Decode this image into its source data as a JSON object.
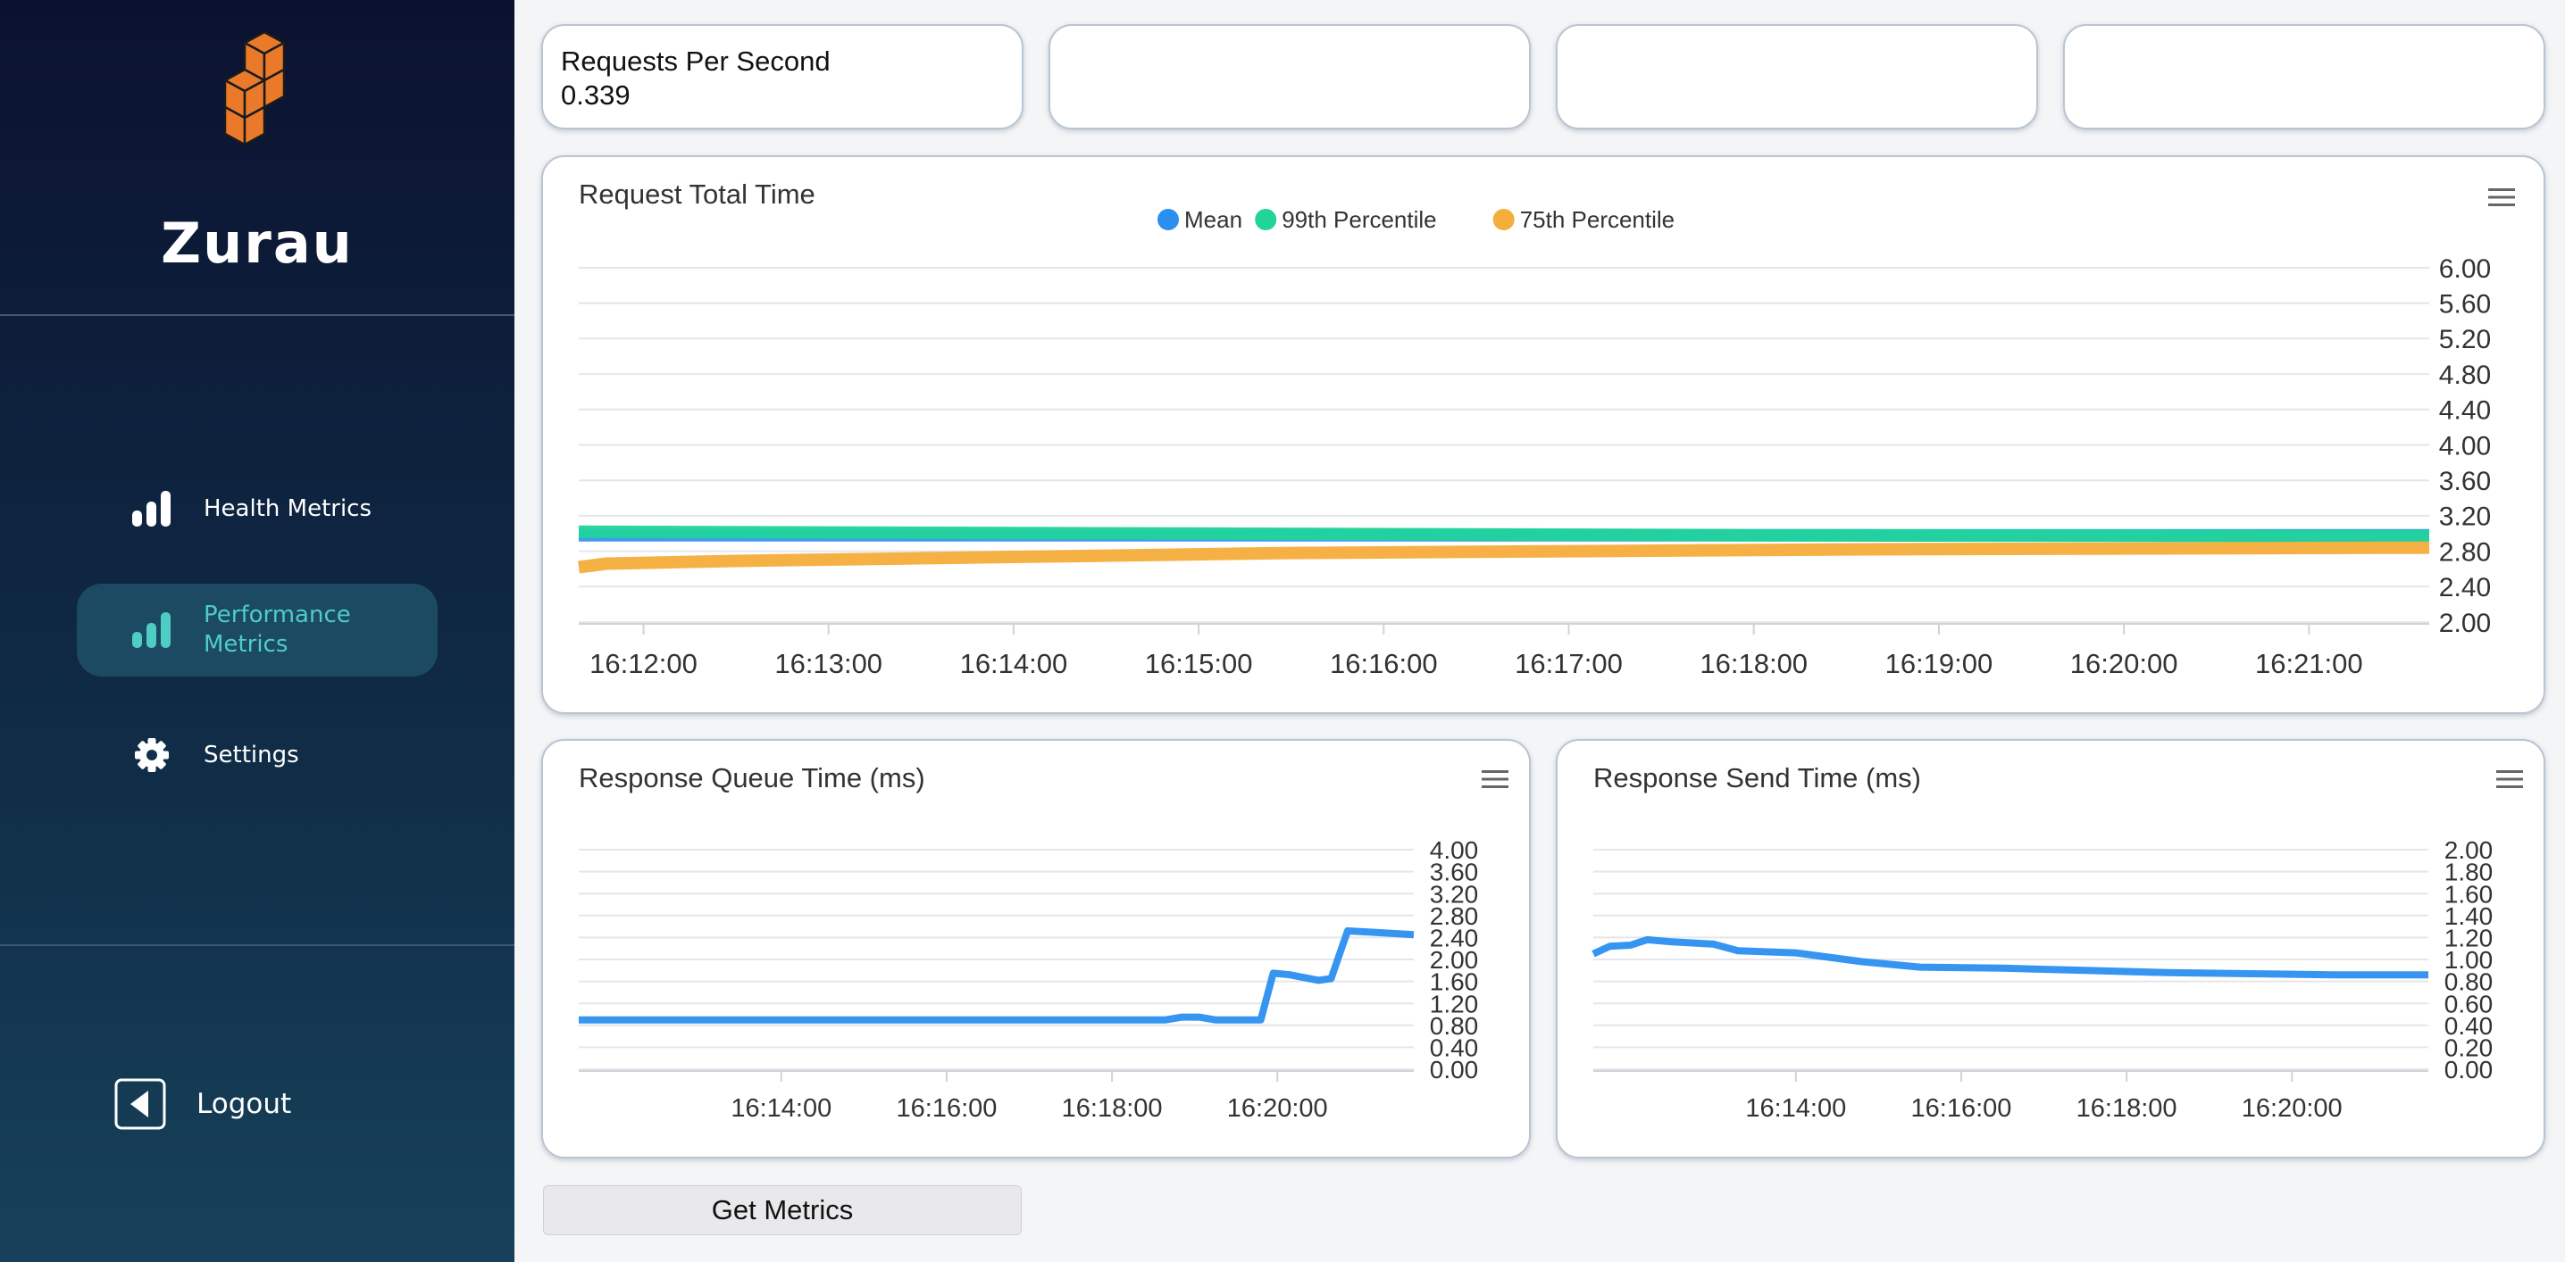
{
  "brand": {
    "name": "Zurau"
  },
  "sidebar": {
    "items": [
      {
        "label": "Health Metrics",
        "icon": "bar-chart-icon",
        "active": false
      },
      {
        "label": "Performance Metrics",
        "icon": "bar-chart-icon",
        "active": true
      },
      {
        "label": "Settings",
        "icon": "gear-icon",
        "active": false
      }
    ],
    "logout_label": "Logout"
  },
  "stats": [
    {
      "title": "Requests Per Second",
      "value": "0.339"
    },
    {
      "title": "",
      "value": ""
    },
    {
      "title": "",
      "value": ""
    },
    {
      "title": "",
      "value": ""
    }
  ],
  "colors": {
    "mean": "#2b8ff0",
    "p99": "#22d39a",
    "p75": "#f5ad3b",
    "accent": "#4ecdc4"
  },
  "chart_data": [
    {
      "type": "line",
      "title": "Request Total Time",
      "legend": [
        "Mean",
        "99th Percentile",
        "75th Percentile"
      ],
      "legend_position": "top-center",
      "y_ticks": [
        "6.00",
        "5.60",
        "5.20",
        "4.80",
        "4.40",
        "4.00",
        "3.60",
        "3.20",
        "2.80",
        "2.40",
        "2.00"
      ],
      "x_ticks": [
        "16:12:00",
        "16:13:00",
        "16:14:00",
        "16:15:00",
        "16:16:00",
        "16:17:00",
        "16:18:00",
        "16:19:00",
        "16:20:00",
        "16:21:00"
      ],
      "xlim": [
        -3.5,
        96.5
      ],
      "ylim": [
        2.0,
        6.0
      ],
      "series": [
        {
          "name": "Mean",
          "x": [
            -3.5,
            96.5
          ],
          "values": [
            2.98,
            2.98
          ]
        },
        {
          "name": "99th Percentile",
          "x": [
            -3.5,
            30,
            60,
            96.5
          ],
          "values": [
            3.02,
            3.0,
            2.98,
            2.97
          ]
        },
        {
          "name": "75th Percentile",
          "x": [
            -3.5,
            -2,
            5,
            15,
            25,
            35,
            50,
            65,
            80,
            96.5
          ],
          "values": [
            2.62,
            2.66,
            2.69,
            2.72,
            2.75,
            2.78,
            2.8,
            2.82,
            2.83,
            2.84
          ]
        }
      ]
    },
    {
      "type": "line",
      "title": "Response Queue Time (ms)",
      "y_ticks": [
        "4.00",
        "3.60",
        "3.20",
        "2.80",
        "2.40",
        "2.00",
        "1.60",
        "1.20",
        "0.80",
        "0.40",
        "0.00"
      ],
      "x_ticks": [
        "16:14:00",
        "16:16:00",
        "16:18:00",
        "16:20:00"
      ],
      "x_tick_values": [
        14,
        16,
        18,
        20
      ],
      "xlim": [
        11.55,
        21.65
      ],
      "ylim": [
        0,
        4
      ],
      "series": [
        {
          "name": "Response Queue Time",
          "x": [
            11.55,
            18.65,
            18.85,
            19.05,
            19.25,
            19.8,
            19.95,
            20.15,
            20.5,
            20.65,
            20.85,
            21.1,
            21.65
          ],
          "values": [
            0.9,
            0.9,
            0.95,
            0.95,
            0.9,
            0.9,
            1.75,
            1.72,
            1.62,
            1.65,
            2.52,
            2.5,
            2.45
          ]
        }
      ]
    },
    {
      "type": "line",
      "title": "Response Send Time (ms)",
      "y_ticks": [
        "2.00",
        "1.80",
        "1.60",
        "1.40",
        "1.20",
        "1.00",
        "0.80",
        "0.60",
        "0.40",
        "0.20",
        "0.00"
      ],
      "x_ticks": [
        "16:14:00",
        "16:16:00",
        "16:18:00",
        "16:20:00"
      ],
      "x_tick_values": [
        14,
        16,
        18,
        20
      ],
      "xlim": [
        11.55,
        21.65
      ],
      "ylim": [
        0,
        2
      ],
      "series": [
        {
          "name": "Response Send Time",
          "x": [
            11.55,
            11.75,
            12.0,
            12.2,
            12.5,
            13.0,
            13.3,
            14.0,
            14.8,
            15.5,
            16.5,
            17.5,
            18.5,
            19.5,
            20.5,
            21.65
          ],
          "values": [
            1.05,
            1.12,
            1.13,
            1.18,
            1.16,
            1.14,
            1.08,
            1.06,
            0.98,
            0.93,
            0.92,
            0.9,
            0.88,
            0.87,
            0.86,
            0.86
          ]
        }
      ]
    }
  ],
  "actions": {
    "get_metrics_label": "Get Metrics"
  }
}
